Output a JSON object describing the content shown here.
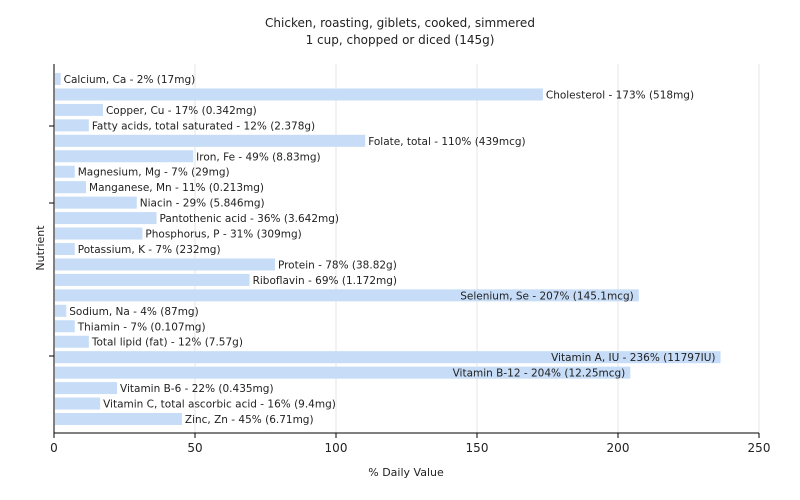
{
  "chart_data": {
    "type": "bar",
    "orientation": "horizontal",
    "title": "Chicken, roasting, giblets, cooked, simmered",
    "subtitle": "1 cup, chopped or diced (145g)",
    "xlabel": "% Daily Value",
    "ylabel": "Nutrient",
    "xlim": [
      0,
      250
    ],
    "xticks": [
      0,
      50,
      100,
      150,
      200,
      250
    ],
    "grid": true,
    "bar_color": "#c6dcf7",
    "categories": [
      "Calcium, Ca",
      "Cholesterol",
      "Copper, Cu",
      "Fatty acids, total saturated",
      "Folate, total",
      "Iron, Fe",
      "Magnesium, Mg",
      "Manganese, Mn",
      "Niacin",
      "Pantothenic acid",
      "Phosphorus, P",
      "Potassium, K",
      "Protein",
      "Riboflavin",
      "Selenium, Se",
      "Sodium, Na",
      "Thiamin",
      "Total lipid (fat)",
      "Vitamin A, IU",
      "Vitamin B-12",
      "Vitamin B-6",
      "Vitamin C, total ascorbic acid",
      "Zinc, Zn"
    ],
    "values": [
      2,
      173,
      17,
      12,
      110,
      49,
      7,
      11,
      29,
      36,
      31,
      7,
      78,
      69,
      207,
      4,
      7,
      12,
      236,
      204,
      22,
      16,
      45
    ],
    "labels": [
      "Calcium, Ca - 2% (17mg)",
      "Cholesterol - 173% (518mg)",
      "Copper, Cu - 17% (0.342mg)",
      "Fatty acids, total saturated - 12% (2.378g)",
      "Folate, total - 110% (439mcg)",
      "Iron, Fe - 49% (8.83mg)",
      "Magnesium, Mg - 7% (29mg)",
      "Manganese, Mn - 11% (0.213mg)",
      "Niacin - 29% (5.846mg)",
      "Pantothenic acid - 36% (3.642mg)",
      "Phosphorus, P - 31% (309mg)",
      "Potassium, K - 7% (232mg)",
      "Protein - 78% (38.82g)",
      "Riboflavin - 69% (1.172mg)",
      "Selenium, Se - 207% (145.1mcg)",
      "Sodium, Na - 4% (87mg)",
      "Thiamin - 7% (0.107mg)",
      "Total lipid (fat) - 12% (7.57g)",
      "Vitamin A, IU - 236% (11797IU)",
      "Vitamin B-12 - 204% (12.25mcg)",
      "Vitamin B-6 - 22% (0.435mg)",
      "Vitamin C, total ascorbic acid - 16% (9.4mg)",
      "Zinc, Zn - 45% (6.71mg)"
    ]
  }
}
